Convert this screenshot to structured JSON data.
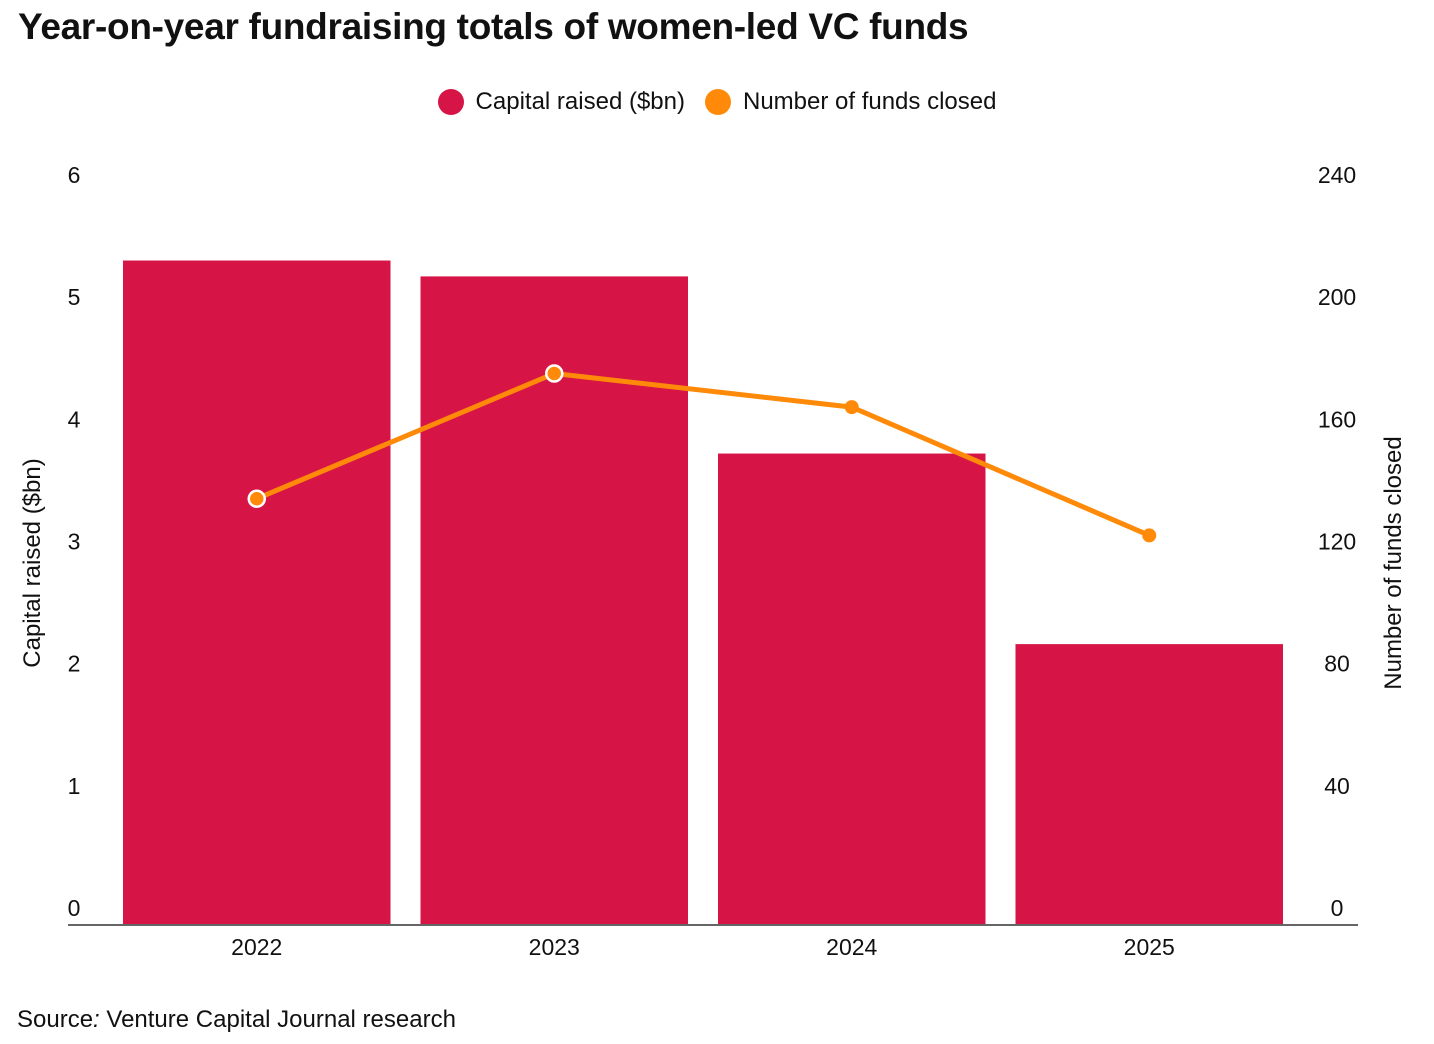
{
  "title": "Year-on-year fundraising totals of women-led VC funds",
  "legend": [
    {
      "label": "Capital raised ($bn)",
      "color": "#d61445"
    },
    {
      "label": "Number of funds closed",
      "color": "#ff8a0a"
    }
  ],
  "source": {
    "prefix": "Source",
    "colon": ":",
    "text": " Venture Capital Journal research"
  },
  "chart_data": {
    "type": "bar",
    "title": "Year-on-year fundraising totals of women-led VC funds",
    "categories": [
      "2022",
      "2023",
      "2024",
      "2025"
    ],
    "series": [
      {
        "name": "Capital raised ($bn)",
        "type": "bar",
        "axis": "left",
        "color": "#d61445",
        "values": [
          5.3,
          5.17,
          3.72,
          2.16
        ]
      },
      {
        "name": "Number of funds closed",
        "type": "line",
        "axis": "right",
        "color": "#ff8a0a",
        "values": [
          134,
          175,
          164,
          122
        ]
      }
    ],
    "y_left": {
      "label": "Capital raised ($bn)",
      "min": 0,
      "max": 6,
      "ticks": [
        "0",
        "1",
        "2",
        "3",
        "4",
        "5",
        "6"
      ]
    },
    "y_right": {
      "label": "Number of funds closed",
      "min": 0,
      "max": 240,
      "ticks": [
        "0",
        "40",
        "80",
        "120",
        "160",
        "200",
        "240"
      ]
    },
    "grid": false,
    "legend_position": "top-center"
  }
}
